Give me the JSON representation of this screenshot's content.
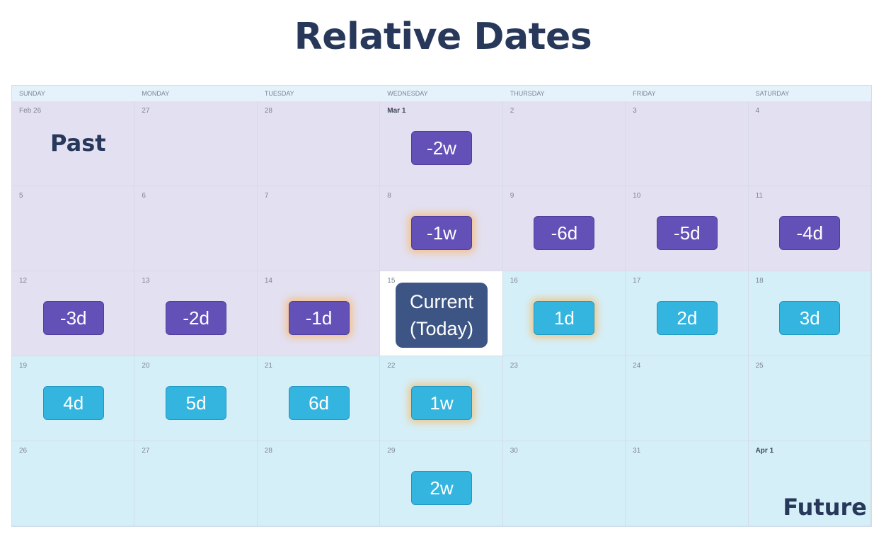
{
  "title": "Relative Dates",
  "weekdays": [
    "SUNDAY",
    "MONDAY",
    "TUESDAY",
    "WEDNESDAY",
    "THURSDAY",
    "FRIDAY",
    "SATURDAY"
  ],
  "colors": {
    "past_cell": "#e3e0f1",
    "future_cell": "#d5eff8",
    "today_cell": "#ffffff",
    "past_chip": "#6451b8",
    "future_chip": "#33b5e0",
    "current_chip": "#3d5585",
    "highlight_glow": "#ffaa3c"
  },
  "weeks": [
    [
      {
        "date": "Feb 26",
        "period": "past"
      },
      {
        "date": "27",
        "period": "past"
      },
      {
        "date": "28",
        "period": "past"
      },
      {
        "date": "Mar 1",
        "period": "past",
        "bold": true,
        "offset": "-2w",
        "highlight": false
      },
      {
        "date": "2",
        "period": "past"
      },
      {
        "date": "3",
        "period": "past"
      },
      {
        "date": "4",
        "period": "past"
      }
    ],
    [
      {
        "date": "5",
        "period": "past"
      },
      {
        "date": "6",
        "period": "past"
      },
      {
        "date": "7",
        "period": "past"
      },
      {
        "date": "8",
        "period": "past",
        "offset": "-1w",
        "highlight": true
      },
      {
        "date": "9",
        "period": "past",
        "offset": "-6d",
        "highlight": false
      },
      {
        "date": "10",
        "period": "past",
        "offset": "-5d",
        "highlight": false
      },
      {
        "date": "11",
        "period": "past",
        "offset": "-4d",
        "highlight": false
      }
    ],
    [
      {
        "date": "12",
        "period": "past",
        "offset": "-3d",
        "highlight": false
      },
      {
        "date": "13",
        "period": "past",
        "offset": "-2d",
        "highlight": false
      },
      {
        "date": "14",
        "period": "past",
        "offset": "-1d",
        "highlight": true
      },
      {
        "date": "15",
        "period": "today"
      },
      {
        "date": "16",
        "period": "future",
        "offset": "1d",
        "highlight": true
      },
      {
        "date": "17",
        "period": "future",
        "offset": "2d",
        "highlight": false
      },
      {
        "date": "18",
        "period": "future",
        "offset": "3d",
        "highlight": false
      }
    ],
    [
      {
        "date": "19",
        "period": "future",
        "offset": "4d",
        "highlight": false
      },
      {
        "date": "20",
        "period": "future",
        "offset": "5d",
        "highlight": false
      },
      {
        "date": "21",
        "period": "future",
        "offset": "6d",
        "highlight": false
      },
      {
        "date": "22",
        "period": "future",
        "offset": "1w",
        "highlight": true
      },
      {
        "date": "23",
        "period": "future"
      },
      {
        "date": "24",
        "period": "future"
      },
      {
        "date": "25",
        "period": "future"
      }
    ],
    [
      {
        "date": "26",
        "period": "future"
      },
      {
        "date": "27",
        "period": "future"
      },
      {
        "date": "28",
        "period": "future"
      },
      {
        "date": "29",
        "period": "future",
        "offset": "2w",
        "highlight": false
      },
      {
        "date": "30",
        "period": "future"
      },
      {
        "date": "31",
        "period": "future"
      },
      {
        "date": "Apr 1",
        "period": "future",
        "bold": true
      }
    ]
  ],
  "current": {
    "line1": "Current",
    "line2": "(Today)"
  },
  "labels": {
    "past": "Past",
    "future": "Future"
  }
}
